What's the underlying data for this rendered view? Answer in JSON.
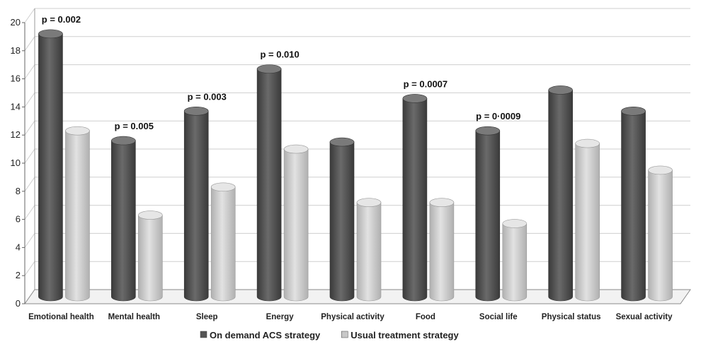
{
  "chart_data": {
    "type": "bar",
    "categories": [
      "Emotional health",
      "Mental health",
      "Sleep",
      "Energy",
      "Physical activity",
      "Food",
      "Social life",
      "Physical status",
      "Sexual activity"
    ],
    "series": [
      {
        "name": "On demand ACS strategy",
        "color": "#555555",
        "values": [
          18.7,
          11.1,
          13.2,
          16.2,
          11.0,
          14.1,
          11.8,
          14.7,
          13.2
        ]
      },
      {
        "name": "Usual treatment strategy",
        "color": "#c8c8c8",
        "values": [
          11.8,
          5.8,
          7.8,
          10.5,
          6.7,
          6.7,
          5.2,
          10.9,
          9.0
        ]
      }
    ],
    "annotations": [
      "p = 0.002",
      "p = 0.005",
      "p = 0.003",
      "p = 0.010",
      "",
      "p = 0.0007",
      "p = 0·0009",
      "",
      ""
    ],
    "yticks": [
      "0",
      "2",
      "4",
      "6",
      "8",
      "10",
      "12",
      "14",
      "16",
      "18",
      "20"
    ],
    "ylim": [
      0,
      20
    ],
    "grid": true,
    "legend_position": "bottom",
    "title": "",
    "xlabel": "",
    "ylabel": ""
  }
}
